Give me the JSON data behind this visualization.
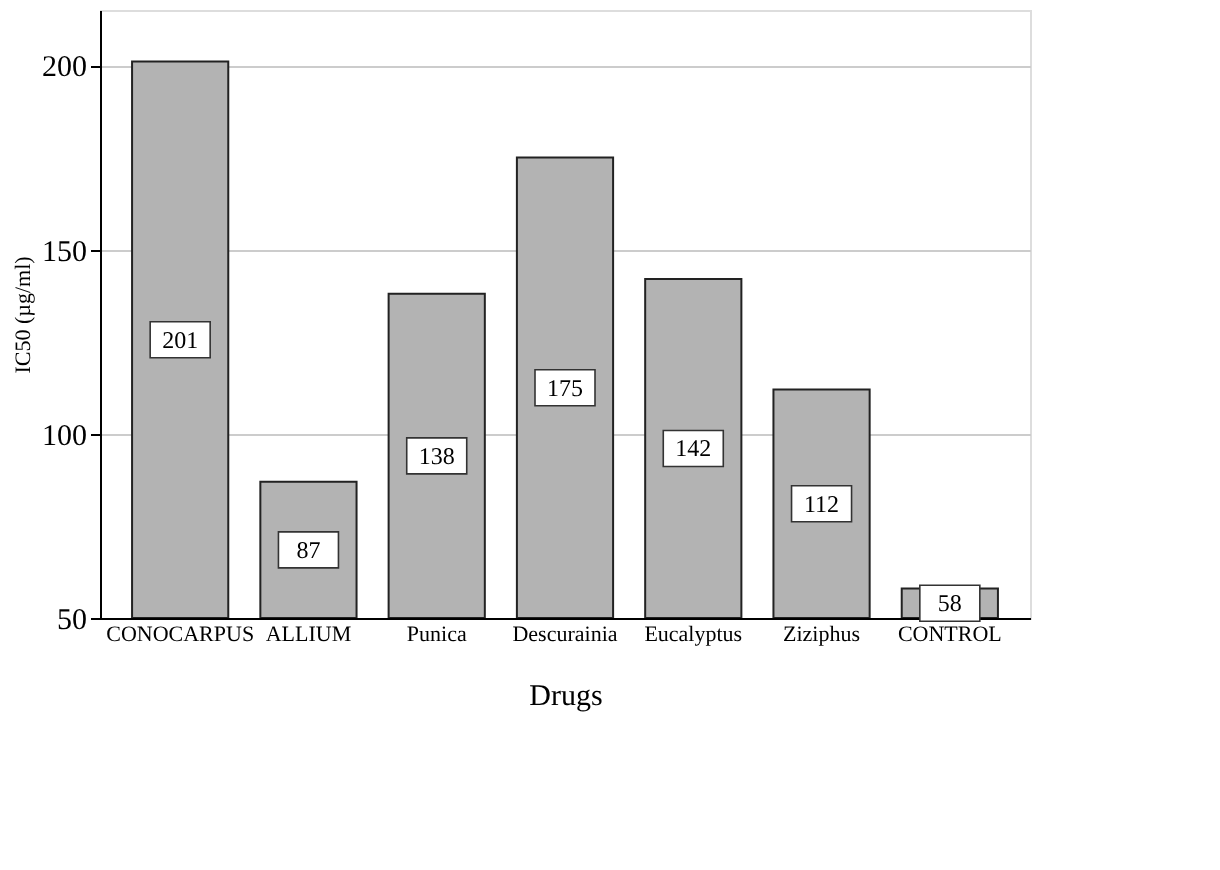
{
  "chart_data": {
    "type": "bar",
    "xlabel": "Drugs",
    "ylabel": "IC50 (µg/ml)",
    "categories": [
      "CONOCARPUS",
      "ALLIUM",
      "Punica",
      "Descurainia",
      "Eucalyptus",
      "Ziziphus",
      "CONTROL"
    ],
    "values": [
      201,
      87,
      138,
      175,
      142,
      112,
      58
    ],
    "color": "#b3b3b3",
    "ylim": [
      50,
      215
    ],
    "yticks": [
      50,
      100,
      150,
      200
    ],
    "grid": "y",
    "data_labels": true
  }
}
